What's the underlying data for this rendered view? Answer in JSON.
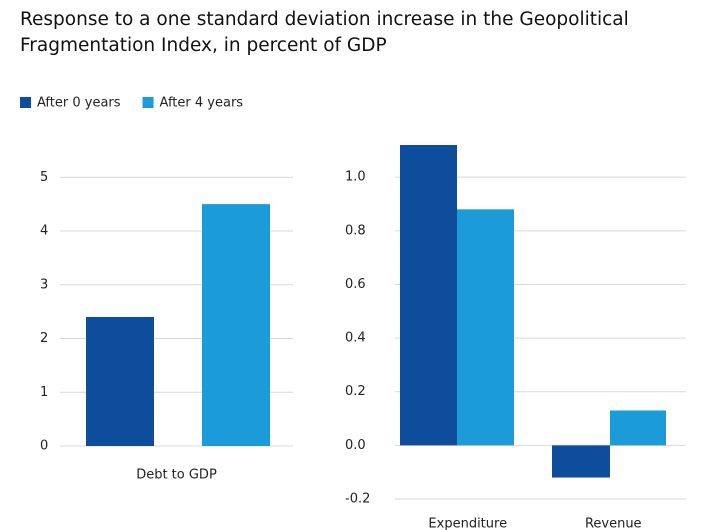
{
  "title": "Response to a one standard deviation increase in the Geopolitical Fragmentation Index, in percent of GDP",
  "legend": [
    {
      "name": "After 0 years",
      "color": "#0e4d9c"
    },
    {
      "name": "After 4 years",
      "color": "#1b9bd7"
    }
  ],
  "chart_data": [
    {
      "type": "bar",
      "categories": [
        "Debt to GDP"
      ],
      "series": [
        {
          "values": [
            2.4
          ]
        },
        {
          "values": [
            4.5
          ]
        }
      ],
      "ylim": [
        0,
        5.6
      ],
      "yticks": [
        0,
        1,
        2,
        3,
        4,
        5
      ],
      "grid": true
    },
    {
      "type": "bar",
      "categories": [
        "Expenditure",
        "Revenue"
      ],
      "series": [
        {
          "values": [
            1.12,
            -0.12
          ]
        },
        {
          "values": [
            0.88,
            0.13
          ]
        }
      ],
      "ylim": [
        -0.2,
        1.12
      ],
      "yticks": [
        -0.2,
        {
          "value": 0,
          "label": "0.0"
        },
        0.2,
        0.4,
        0.6,
        0.8,
        {
          "value": 1,
          "label": "1.0"
        }
      ],
      "grid": true
    }
  ]
}
